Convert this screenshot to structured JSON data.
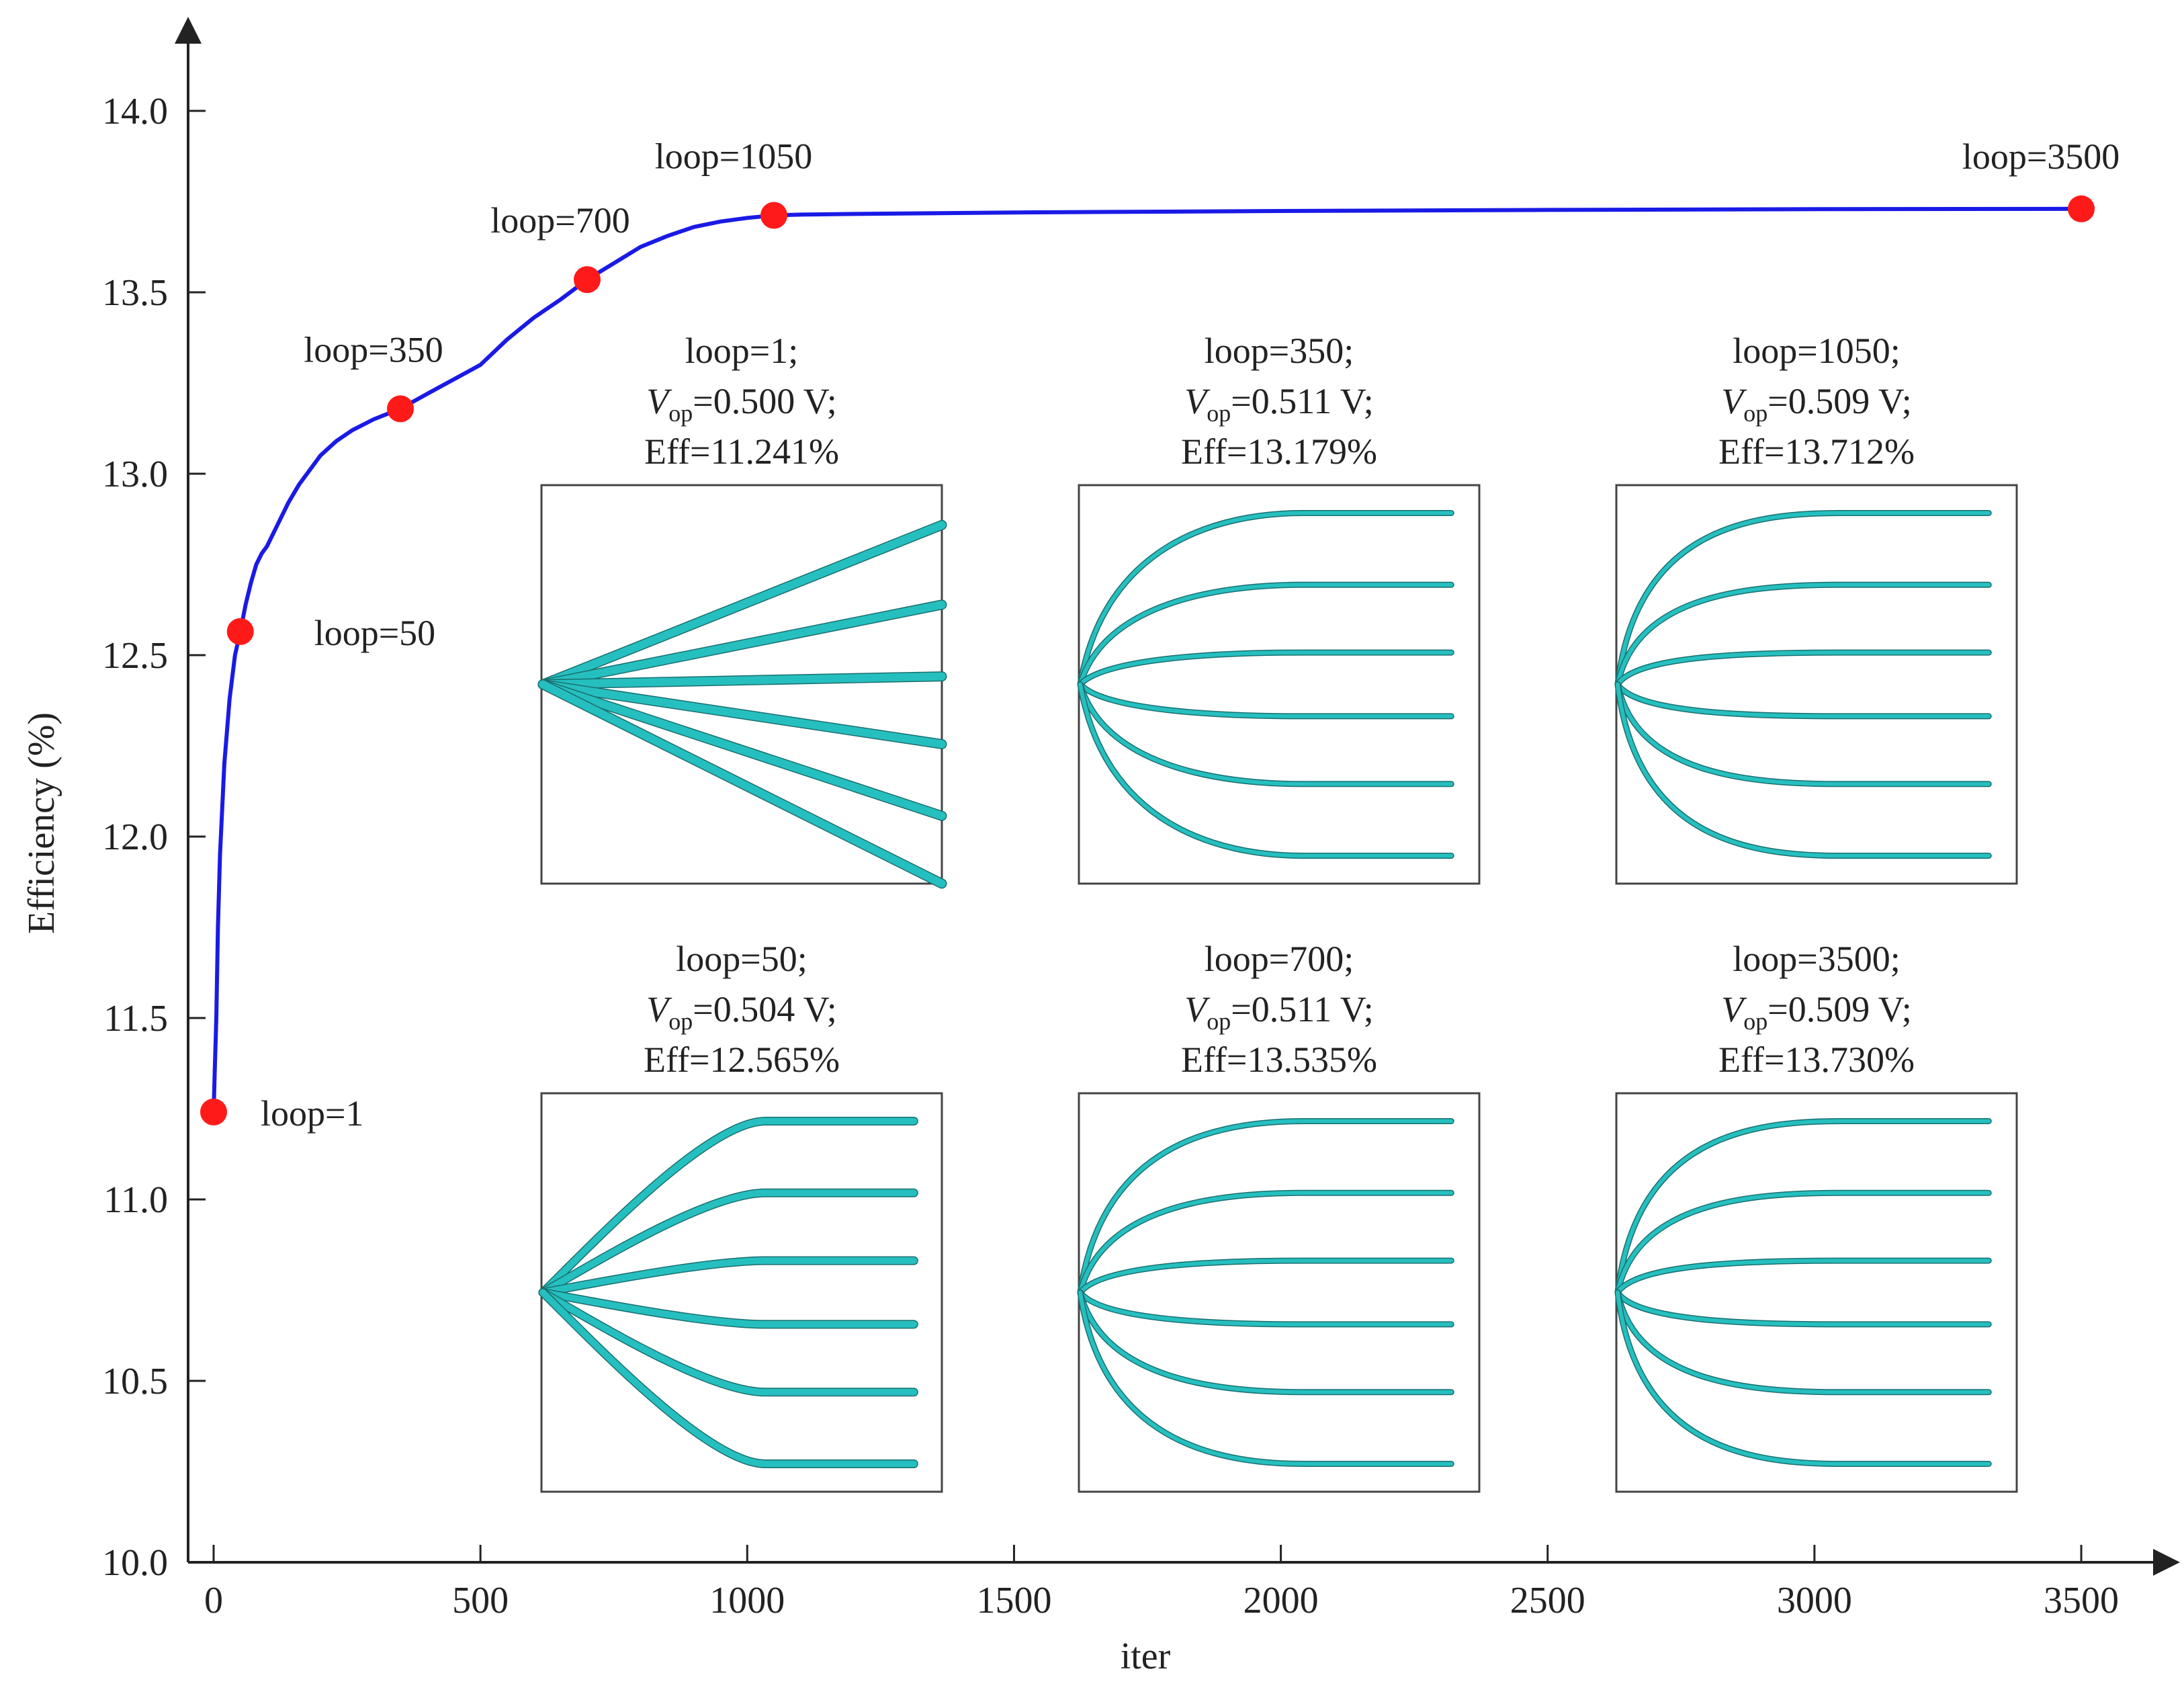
{
  "chart_data": {
    "type": "line",
    "xlabel": "iter",
    "ylabel": "Efficiency (%)",
    "xlim": [
      -50,
      3650
    ],
    "ylim": [
      10.0,
      14.25
    ],
    "x_ticks": [
      "0",
      "500",
      "1000",
      "1500",
      "2000",
      "2500",
      "3000",
      "3500"
    ],
    "y_ticks": [
      "10.0",
      "10.5",
      "11.0",
      "11.5",
      "12.0",
      "12.5",
      "13.0",
      "13.5",
      "14.0"
    ],
    "series": [
      {
        "name": "Efficiency",
        "color": "#1a1ae6",
        "x": [
          0,
          2,
          5,
          8,
          12,
          20,
          30,
          40,
          50,
          60,
          70,
          80,
          90,
          100,
          120,
          140,
          160,
          180,
          200,
          230,
          260,
          300,
          350,
          400,
          450,
          500,
          550,
          600,
          650,
          700,
          750,
          800,
          850,
          900,
          950,
          1000,
          1050,
          1100,
          1200,
          1500,
          2000,
          2500,
          3000,
          3500
        ],
        "y": [
          11.24,
          11.35,
          11.5,
          11.75,
          11.95,
          12.2,
          12.38,
          12.5,
          12.565,
          12.64,
          12.7,
          12.75,
          12.78,
          12.8,
          12.86,
          12.92,
          12.97,
          13.01,
          13.05,
          13.09,
          13.12,
          13.15,
          13.179,
          13.22,
          13.26,
          13.3,
          13.37,
          13.43,
          13.48,
          13.535,
          13.58,
          13.625,
          13.655,
          13.68,
          13.695,
          13.705,
          13.712,
          13.714,
          13.716,
          13.72,
          13.724,
          13.727,
          13.729,
          13.73
        ]
      }
    ],
    "markers": [
      {
        "label": "loop=1",
        "x": 0,
        "y": 11.241
      },
      {
        "label": "loop=50",
        "x": 50,
        "y": 12.565
      },
      {
        "label": "loop=350",
        "x": 350,
        "y": 13.179
      },
      {
        "label": "loop=700",
        "x": 700,
        "y": 13.535
      },
      {
        "label": "loop=1050",
        "x": 1050,
        "y": 13.712
      },
      {
        "label": "loop=3500",
        "x": 3500,
        "y": 13.73
      }
    ],
    "marker_color": "#ff1a1a",
    "inset_color": "#26bfbf",
    "insets": [
      {
        "loop": "loop=1;",
        "vop": "=0.500 V;",
        "eff": "Eff=11.241%",
        "convergence": 0.0,
        "branch_ends": [
          0.9,
          0.7,
          0.52,
          0.35,
          0.17,
          0.0
        ]
      },
      {
        "loop": "loop=350;",
        "vop": "=0.511 V;",
        "eff": "Eff=13.179%",
        "convergence": 0.9,
        "branch_ends": [
          0.93,
          0.75,
          0.58,
          0.42,
          0.25,
          0.07
        ]
      },
      {
        "loop": "loop=1050;",
        "vop": "=0.509 V;",
        "eff": "Eff=13.712%",
        "convergence": 1.0,
        "branch_ends": [
          0.93,
          0.75,
          0.58,
          0.42,
          0.25,
          0.07
        ]
      },
      {
        "loop": "loop=50;",
        "vop": "=0.504 V;",
        "eff": "Eff=12.565%",
        "convergence": 0.35,
        "branch_ends": [
          0.93,
          0.75,
          0.58,
          0.42,
          0.25,
          0.07
        ]
      },
      {
        "loop": "loop=700;",
        "vop": "=0.511 V;",
        "eff": "Eff=13.535%",
        "convergence": 0.95,
        "branch_ends": [
          0.93,
          0.75,
          0.58,
          0.42,
          0.25,
          0.07
        ]
      },
      {
        "loop": "loop=3500;",
        "vop": "=0.509 V;",
        "eff": "Eff=13.730%",
        "convergence": 1.0,
        "branch_ends": [
          0.93,
          0.75,
          0.58,
          0.42,
          0.25,
          0.07
        ]
      }
    ],
    "vop_symbol": "V",
    "vop_subscript": "op"
  }
}
